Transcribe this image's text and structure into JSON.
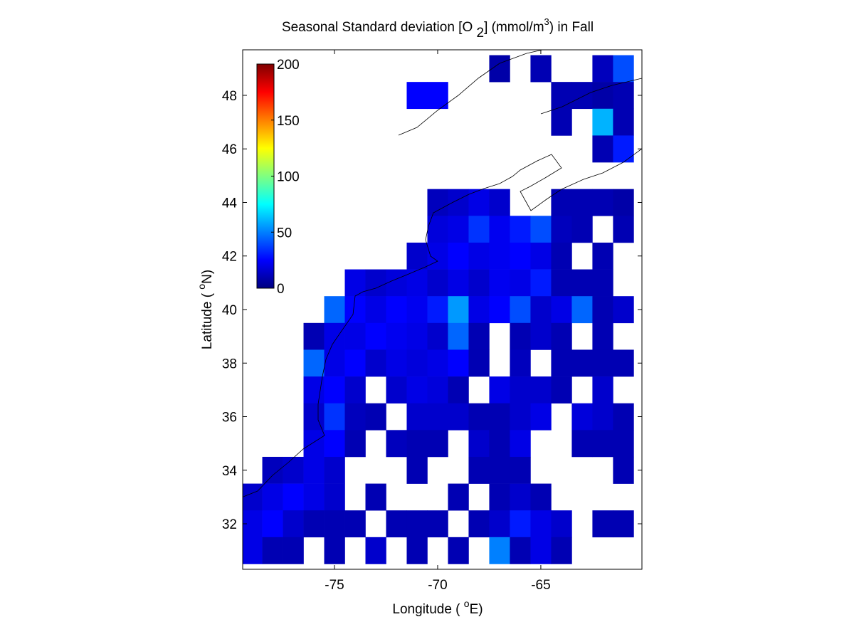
{
  "chart_data": {
    "type": "heatmap",
    "title": [
      "Seasonal Standard deviation [O",
      "2",
      "] (mmol/m",
      "3",
      ") in  Fall"
    ],
    "xlabel": [
      "Longitude ( ",
      "o",
      "E)"
    ],
    "ylabel": [
      "Latitude ( ",
      "o",
      "N)"
    ],
    "xlim": [
      -79.45,
      -60.1
    ],
    "ylim": [
      30.3,
      49.7
    ],
    "xticks": [
      -75,
      -70,
      -65
    ],
    "yticks": [
      32,
      34,
      36,
      38,
      40,
      42,
      44,
      46,
      48
    ],
    "clim": [
      0,
      200
    ],
    "cticks": [
      0,
      50,
      100,
      150,
      200
    ],
    "colormap": "jet",
    "x": [
      -79,
      -78,
      -77,
      -76,
      -75,
      -74,
      -73,
      -72,
      -71,
      -70,
      -69,
      -68,
      -67,
      -66,
      -65,
      -64,
      -63,
      -62,
      -61
    ],
    "y": [
      49,
      48,
      47,
      46,
      45,
      44,
      43,
      42,
      41,
      40,
      39,
      38,
      37,
      36,
      35,
      34,
      33,
      32,
      31
    ],
    "z": [
      [
        null,
        null,
        null,
        null,
        null,
        null,
        null,
        null,
        null,
        null,
        null,
        null,
        8,
        null,
        10,
        null,
        null,
        12,
        40
      ],
      [
        null,
        null,
        null,
        null,
        null,
        null,
        null,
        null,
        25,
        25,
        null,
        null,
        null,
        null,
        null,
        10,
        10,
        8,
        10
      ],
      [
        null,
        null,
        null,
        null,
        null,
        null,
        null,
        null,
        null,
        null,
        null,
        null,
        null,
        null,
        null,
        10,
        null,
        60,
        10
      ],
      [
        null,
        null,
        null,
        null,
        null,
        null,
        null,
        null,
        null,
        null,
        null,
        null,
        null,
        null,
        null,
        null,
        null,
        10,
        30
      ],
      [
        null,
        null,
        null,
        null,
        null,
        null,
        null,
        null,
        null,
        null,
        null,
        null,
        null,
        null,
        null,
        null,
        null,
        null,
        null
      ],
      [
        null,
        null,
        null,
        null,
        null,
        null,
        null,
        null,
        null,
        12,
        15,
        20,
        15,
        null,
        null,
        10,
        10,
        10,
        8
      ],
      [
        null,
        null,
        null,
        null,
        null,
        null,
        null,
        null,
        null,
        18,
        20,
        35,
        22,
        30,
        40,
        12,
        10,
        null,
        10
      ],
      [
        null,
        null,
        null,
        null,
        null,
        null,
        null,
        null,
        15,
        20,
        25,
        20,
        22,
        25,
        20,
        10,
        null,
        10,
        null
      ],
      [
        null,
        null,
        null,
        null,
        null,
        20,
        15,
        18,
        20,
        15,
        20,
        15,
        22,
        20,
        30,
        10,
        10,
        10,
        null
      ],
      [
        null,
        null,
        null,
        null,
        45,
        25,
        20,
        25,
        22,
        30,
        55,
        20,
        25,
        40,
        15,
        20,
        45,
        10,
        15
      ],
      [
        null,
        null,
        null,
        10,
        20,
        20,
        25,
        22,
        20,
        15,
        45,
        10,
        null,
        10,
        15,
        10,
        null,
        10,
        null
      ],
      [
        null,
        null,
        null,
        45,
        20,
        25,
        15,
        20,
        18,
        20,
        25,
        10,
        null,
        12,
        null,
        10,
        10,
        10,
        10
      ],
      [
        null,
        null,
        null,
        20,
        25,
        15,
        null,
        15,
        20,
        18,
        10,
        null,
        20,
        15,
        15,
        10,
        null,
        15,
        null
      ],
      [
        null,
        null,
        null,
        15,
        35,
        12,
        10,
        null,
        15,
        15,
        15,
        10,
        10,
        15,
        20,
        null,
        18,
        15,
        10
      ],
      [
        null,
        null,
        null,
        20,
        25,
        10,
        null,
        12,
        10,
        10,
        null,
        15,
        10,
        20,
        null,
        null,
        10,
        10,
        10
      ],
      [
        null,
        12,
        15,
        20,
        15,
        null,
        null,
        null,
        10,
        null,
        null,
        10,
        10,
        10,
        null,
        null,
        null,
        null,
        10
      ],
      [
        15,
        20,
        25,
        20,
        15,
        null,
        10,
        null,
        null,
        null,
        10,
        null,
        10,
        15,
        10,
        null,
        null,
        null,
        null
      ],
      [
        20,
        25,
        15,
        10,
        10,
        10,
        null,
        10,
        10,
        10,
        null,
        10,
        15,
        30,
        20,
        15,
        null,
        10,
        10
      ],
      [
        20,
        10,
        10,
        null,
        10,
        null,
        15,
        null,
        10,
        null,
        10,
        null,
        50,
        10,
        20,
        10,
        null,
        null,
        null
      ]
    ]
  }
}
